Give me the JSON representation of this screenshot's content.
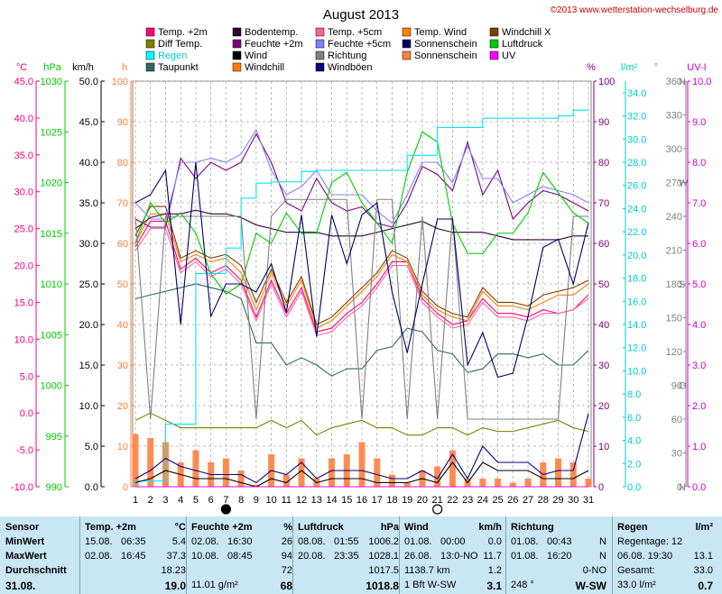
{
  "title": "August 2013",
  "copyright": "©2013 www.wetterstation-wechselburg.de",
  "colors": {
    "temp2m": "#ff0080",
    "bodentemp": "#330033",
    "temp5cm": "#ff6699",
    "tempwind": "#ff8000",
    "windchillx": "#804000",
    "difftemp": "#808000",
    "feuchte2m": "#800080",
    "feuchte5cm": "#8080ff",
    "sonnenschein": "#000066",
    "luftdruck": "#00cc00",
    "regen": "#00ffff",
    "wind": "#000000",
    "richtung": "#808080",
    "sonnenscheinbar": "#ff8040",
    "uv": "#ff00ff",
    "taupunkt": "#336666",
    "windchill": "#ff8000",
    "windboeen": "#000080"
  },
  "legend": [
    {
      "label": "Temp. +2m",
      "color": "#ff0080"
    },
    {
      "label": "Bodentemp.",
      "color": "#330033"
    },
    {
      "label": "Temp. +5cm",
      "color": "#ff6699"
    },
    {
      "label": "Temp. Wind",
      "color": "#ff8000"
    },
    {
      "label": "Windchill X",
      "color": "#804000"
    },
    {
      "label": "Diff Temp.",
      "color": "#808000"
    },
    {
      "label": "Feuchte +2m",
      "color": "#800080"
    },
    {
      "label": "Feuchte +5cm",
      "color": "#8080ff"
    },
    {
      "label": "Sonnenschein",
      "color": "#000066"
    },
    {
      "label": "Luftdruck",
      "color": "#00cc00"
    },
    {
      "label": "Regen",
      "color": "#00ffff"
    },
    {
      "label": "Wind",
      "color": "#000000"
    },
    {
      "label": "Richtung",
      "color": "#808080"
    },
    {
      "label": "Sonnenschein",
      "color": "#ff8040"
    },
    {
      "label": "UV",
      "color": "#ff00ff"
    },
    {
      "label": "Taupunkt",
      "color": "#336666"
    },
    {
      "label": "Windchill",
      "color": "#ff8000"
    },
    {
      "label": "Windböen",
      "color": "#000080"
    }
  ],
  "axes": {
    "celsius": {
      "unit": "°C",
      "ticks": [
        "45.0",
        "40.0",
        "35.0",
        "30.0",
        "25.0",
        "20.0",
        "15.0",
        "10.0",
        "5.0",
        "0.0",
        "-5.0",
        "-10.0"
      ]
    },
    "hpa": {
      "unit": "hPa",
      "ticks": [
        "1030",
        "1025",
        "1020",
        "1015",
        "1010",
        "1005",
        "1000",
        "995",
        "990"
      ]
    },
    "kmh": {
      "unit": "km/h",
      "ticks": [
        "50.0",
        "45.0",
        "40.0",
        "35.0",
        "30.0",
        "25.0",
        "20.0",
        "15.0",
        "10.0",
        "5.0",
        "0.0"
      ]
    },
    "h": {
      "unit": "h",
      "ticks": [
        "100",
        "90",
        "80",
        "70",
        "60",
        "50",
        "40",
        "30",
        "20",
        "10",
        "0"
      ]
    },
    "percent": {
      "unit": "%",
      "ticks": [
        "100",
        "90",
        "80",
        "70",
        "60",
        "50",
        "40",
        "30",
        "20",
        "10",
        "0"
      ]
    },
    "rain": {
      "unit": "l/m²",
      "ticks": [
        "34.0",
        "32.0",
        "30.0",
        "28.0",
        "26.0",
        "24.0",
        "22.0",
        "20.0",
        "18.0",
        "16.0",
        "14.0",
        "12.0",
        "10.0",
        "8.0",
        "6.0",
        "4.0",
        "2.0",
        "0.0"
      ]
    },
    "degree": {
      "unit": "°",
      "ticks": [
        "360",
        "330",
        "300",
        "270",
        "240",
        "210",
        "180",
        "150",
        "120",
        "90",
        "60",
        "30",
        "0"
      ],
      "compass": [
        "N",
        "W",
        "S",
        "O",
        "N"
      ]
    },
    "uv": {
      "unit": "UV-I",
      "ticks": [
        "10.0",
        "9.0",
        "8.0",
        "7.0",
        "6.0",
        "5.0",
        "4.0",
        "3.0",
        "2.0",
        "1.0",
        "0.0"
      ]
    },
    "days": [
      "1",
      "2",
      "3",
      "4",
      "5",
      "6",
      "7",
      "8",
      "9",
      "10",
      "11",
      "12",
      "13",
      "14",
      "15",
      "16",
      "17",
      "18",
      "19",
      "20",
      "21",
      "22",
      "23",
      "24",
      "25",
      "26",
      "27",
      "28",
      "29",
      "30",
      "31"
    ]
  },
  "chart_data": {
    "type": "line",
    "title": "August 2013",
    "x": [
      1,
      2,
      3,
      4,
      5,
      6,
      7,
      8,
      9,
      10,
      11,
      12,
      13,
      14,
      15,
      16,
      17,
      18,
      19,
      20,
      21,
      22,
      23,
      24,
      25,
      26,
      27,
      28,
      29,
      30,
      31
    ],
    "series": [
      {
        "name": "Temp. +2m",
        "axis": "celsius",
        "color": "#ff0080",
        "values": [
          22.5,
          26,
          26,
          19.5,
          21,
          19,
          20,
          18,
          13,
          18,
          13.5,
          17,
          11,
          11.5,
          13.5,
          15,
          17.5,
          20.5,
          20.5,
          15.5,
          13.5,
          12,
          12.5,
          15.5,
          13.5,
          13.5,
          13,
          14,
          13.5,
          14,
          16
        ]
      },
      {
        "name": "Temp. Wind",
        "axis": "celsius",
        "color": "#ff8000",
        "values": [
          23,
          27,
          27,
          20.5,
          21.5,
          20.5,
          21,
          19,
          14,
          19,
          14.5,
          18,
          11.5,
          12.5,
          14.5,
          16.5,
          18.5,
          21.5,
          20.5,
          16,
          14,
          13,
          12.5,
          16.5,
          14.5,
          14.5,
          14,
          15,
          16,
          16,
          17.5
        ]
      },
      {
        "name": "Windchill X",
        "axis": "celsius",
        "color": "#804000",
        "values": [
          24,
          28,
          28,
          21,
          22,
          21,
          21.5,
          20,
          15,
          19.5,
          15,
          18.5,
          12,
          13,
          15,
          17,
          19,
          22,
          21,
          16.5,
          14.5,
          13.5,
          13,
          17,
          15,
          15,
          14.5,
          16,
          16.5,
          17,
          18
        ]
      },
      {
        "name": "Temp. +5cm",
        "axis": "celsius",
        "color": "#ff6699",
        "values": [
          22,
          25,
          25,
          19,
          20.5,
          18.5,
          19.5,
          17.5,
          12.5,
          17.5,
          13,
          16.5,
          10.5,
          11,
          13,
          14.5,
          17,
          20,
          20,
          15,
          13,
          11.5,
          12,
          15,
          13,
          13,
          12.5,
          13.5,
          13.5,
          14,
          15.5
        ]
      },
      {
        "name": "Bodentemp.",
        "axis": "celsius",
        "color": "#330033",
        "values": [
          25,
          26.5,
          27,
          27,
          27.5,
          27,
          27,
          26.5,
          25.5,
          25,
          24.5,
          24.5,
          24.5,
          24,
          24,
          24,
          24.5,
          25,
          25.5,
          26,
          25,
          24.5,
          24.5,
          24.5,
          24,
          23.5,
          23.5,
          23.5,
          23.5,
          24,
          24
        ]
      },
      {
        "name": "Taupunkt",
        "axis": "celsius",
        "color": "#336666",
        "values": [
          15.5,
          16,
          16.5,
          17,
          17.5,
          17,
          16.5,
          15.5,
          9.5,
          9.5,
          6.5,
          7.5,
          6.5,
          5,
          6,
          6,
          8.5,
          9,
          11.5,
          11,
          8.5,
          8,
          5.5,
          6,
          8,
          8,
          7.5,
          8,
          6.5,
          6.5,
          8.5
        ]
      },
      {
        "name": "Diff Temp.",
        "axis": "celsius",
        "color": "#808000",
        "values": [
          -1,
          0,
          -1,
          -2,
          -2,
          -2,
          -2,
          -2,
          -2,
          -1,
          -2,
          -1,
          -3,
          -2,
          -1.5,
          -1,
          -2,
          -2,
          -3,
          -3,
          -2,
          -2,
          -3,
          -2,
          -2.5,
          -2.5,
          -2,
          -1.5,
          -1,
          -2,
          -2.5
        ]
      },
      {
        "name": "Feuchte +2m",
        "axis": "percent",
        "color": "#800080",
        "values": [
          66,
          64,
          64,
          81,
          76,
          80,
          78,
          80,
          87,
          80,
          70,
          68,
          76,
          70,
          68,
          69,
          65,
          64,
          70,
          79,
          77,
          73,
          85,
          72,
          78,
          66,
          70,
          73,
          72,
          70,
          68
        ]
      },
      {
        "name": "Feuchte +5cm",
        "axis": "percent",
        "color": "#8080ff",
        "values": [
          70,
          66,
          66,
          80,
          80,
          81,
          80,
          82,
          88,
          78,
          72,
          74,
          78,
          72,
          72,
          72,
          68,
          65,
          72,
          80,
          80,
          75,
          84,
          76,
          76,
          70,
          72,
          74,
          73,
          72,
          70
        ]
      },
      {
        "name": "Luftdruck",
        "axis": "hpa",
        "color": "#00cc00",
        "values": [
          1014,
          1018,
          1016,
          1017,
          1015,
          1011,
          1009,
          1010,
          1015,
          1014,
          1017,
          1015,
          1015,
          1020,
          1021,
          1018,
          1016,
          1014,
          1021,
          1025,
          1024,
          1016,
          1013,
          1013,
          1015,
          1015,
          1017,
          1021,
          1019,
          1017,
          1016
        ]
      },
      {
        "name": "Regen",
        "axis": "rain",
        "color": "#00ffff",
        "values": [
          0,
          0,
          0,
          0,
          0,
          0,
          0,
          0,
          0,
          0,
          0,
          0,
          0,
          0,
          0,
          0,
          0,
          0,
          0,
          0,
          0,
          0,
          0,
          0,
          0,
          0,
          0,
          0,
          0,
          0,
          0
        ],
        "cumulative": [
          0,
          0.5,
          0.5,
          5.4,
          5.4,
          18.4,
          18.4,
          20.6,
          24.9,
          26.2,
          26.3,
          26.3,
          27.2,
          27.3,
          27.3,
          27.3,
          27.3,
          27.3,
          27.3,
          28.6,
          28.6,
          31,
          31,
          31,
          31.8,
          31.8,
          31.8,
          31.8,
          31.8,
          32,
          32.5
        ]
      },
      {
        "name": "Richtung",
        "axis": "degree",
        "color": "#808080",
        "values": [
          240,
          60,
          240,
          240,
          240,
          240,
          240,
          240,
          60,
          240,
          255,
          255,
          255,
          255,
          255,
          60,
          255,
          255,
          60,
          240,
          60,
          240,
          60,
          60,
          60,
          60,
          60,
          60,
          60,
          240,
          240
        ]
      },
      {
        "name": "Sonnenschein",
        "axis": "h",
        "color": "#000066",
        "values": [
          70,
          72,
          78,
          40,
          80,
          42,
          50,
          50,
          48,
          55,
          43,
          67,
          37,
          67,
          55,
          67,
          70,
          48,
          33,
          50,
          66,
          66,
          30,
          38,
          27,
          28,
          42,
          59,
          61,
          50,
          65
        ]
      },
      {
        "name": "Windböen",
        "axis": "kmh",
        "color": "#000080",
        "values": [
          1,
          2,
          3.5,
          2.5,
          2,
          1.5,
          1.5,
          1.5,
          0.5,
          2,
          1.5,
          3,
          1,
          2,
          2,
          2,
          1.5,
          1,
          1,
          2,
          1,
          4,
          1,
          5,
          3,
          3,
          3,
          1.5,
          2,
          2,
          9
        ]
      },
      {
        "name": "Wind",
        "axis": "kmh",
        "color": "#000000",
        "values": [
          0.5,
          1,
          2,
          1.5,
          1,
          1,
          1,
          0.5,
          0,
          1,
          0.5,
          2,
          0.5,
          1,
          1,
          1,
          0.5,
          0.5,
          0.5,
          1,
          0.5,
          3,
          0.5,
          3,
          2,
          2,
          2,
          1,
          1,
          1,
          2
        ]
      },
      {
        "name": "Sonnenschein",
        "axis": "h",
        "color": "#ff8040",
        "type": "bar",
        "values": [
          13,
          12,
          11,
          6,
          9,
          6,
          7,
          4,
          0.5,
          8,
          3,
          7,
          2,
          7,
          8,
          11,
          7,
          3,
          1,
          4,
          5,
          9,
          2,
          2,
          2,
          1,
          2,
          6,
          7,
          6,
          2
        ]
      },
      {
        "name": "UV",
        "axis": "uv",
        "color": "#ff00ff",
        "values": [
          0,
          0,
          0,
          0,
          0,
          0,
          0,
          0,
          0,
          0,
          0,
          0,
          0,
          0,
          0,
          0,
          0,
          0,
          0,
          0,
          0,
          0,
          0,
          0,
          0,
          0,
          0,
          0,
          0,
          0,
          0
        ]
      }
    ],
    "moon_phases": [
      {
        "day": 7,
        "phase": "new"
      },
      {
        "day": 21,
        "phase": "full"
      }
    ]
  },
  "stats": {
    "sensor": {
      "header": "Sensor",
      "rows": [
        "MinWert",
        "MaxWert",
        "Durchschnitt",
        "31.08."
      ]
    },
    "temp": {
      "header": "Temp. +2m",
      "unit": "°C",
      "rows": [
        [
          "15.08.",
          "06:35",
          "5.4"
        ],
        [
          "02.08.",
          "16:45",
          "37.3"
        ],
        [
          "",
          "",
          "18.23"
        ],
        [
          "",
          "",
          "19.0"
        ]
      ]
    },
    "feuchte": {
      "header": "Feuchte +2m",
      "unit": "%",
      "rows": [
        [
          "02.08.",
          "16:30",
          "26"
        ],
        [
          "10.08.",
          "08:45",
          "94"
        ],
        [
          "",
          "",
          "72"
        ],
        [
          "11.01 g/m²",
          "",
          "68"
        ]
      ]
    },
    "druck": {
      "header": "Luftdruck",
      "unit": "hPa",
      "rows": [
        [
          "08.08.",
          "01:55",
          "1006.2"
        ],
        [
          "20.08.",
          "23:35",
          "1028.1"
        ],
        [
          "",
          "",
          "1017.5"
        ],
        [
          "",
          "",
          "1018.8"
        ]
      ]
    },
    "wind": {
      "header": "Wind",
      "unit": "km/h",
      "rows": [
        [
          "01.08.",
          "00:00",
          "0.0"
        ],
        [
          "26.08.",
          "13:0-NO",
          "11.7"
        ],
        [
          "1138.7 km",
          "",
          "1.2"
        ],
        [
          "1 Bft W-SW",
          "",
          "3.1"
        ]
      ]
    },
    "richtung": {
      "header": "Richtung",
      "rows": [
        [
          "01.08.",
          "00:43",
          "N"
        ],
        [
          "01.08.",
          "16:20",
          "N"
        ],
        [
          "",
          "",
          "0-NO"
        ],
        [
          "248 °",
          "",
          "W-SW"
        ]
      ]
    },
    "regen": {
      "header": "Regen",
      "unit": "l/m²",
      "rows": [
        [
          "Regentage: 12",
          ""
        ],
        [
          "06.08.  19:30",
          "13.1"
        ],
        [
          "Gesamt:",
          "33.0"
        ],
        [
          "33.0 l/m²",
          "0.7"
        ]
      ]
    }
  }
}
